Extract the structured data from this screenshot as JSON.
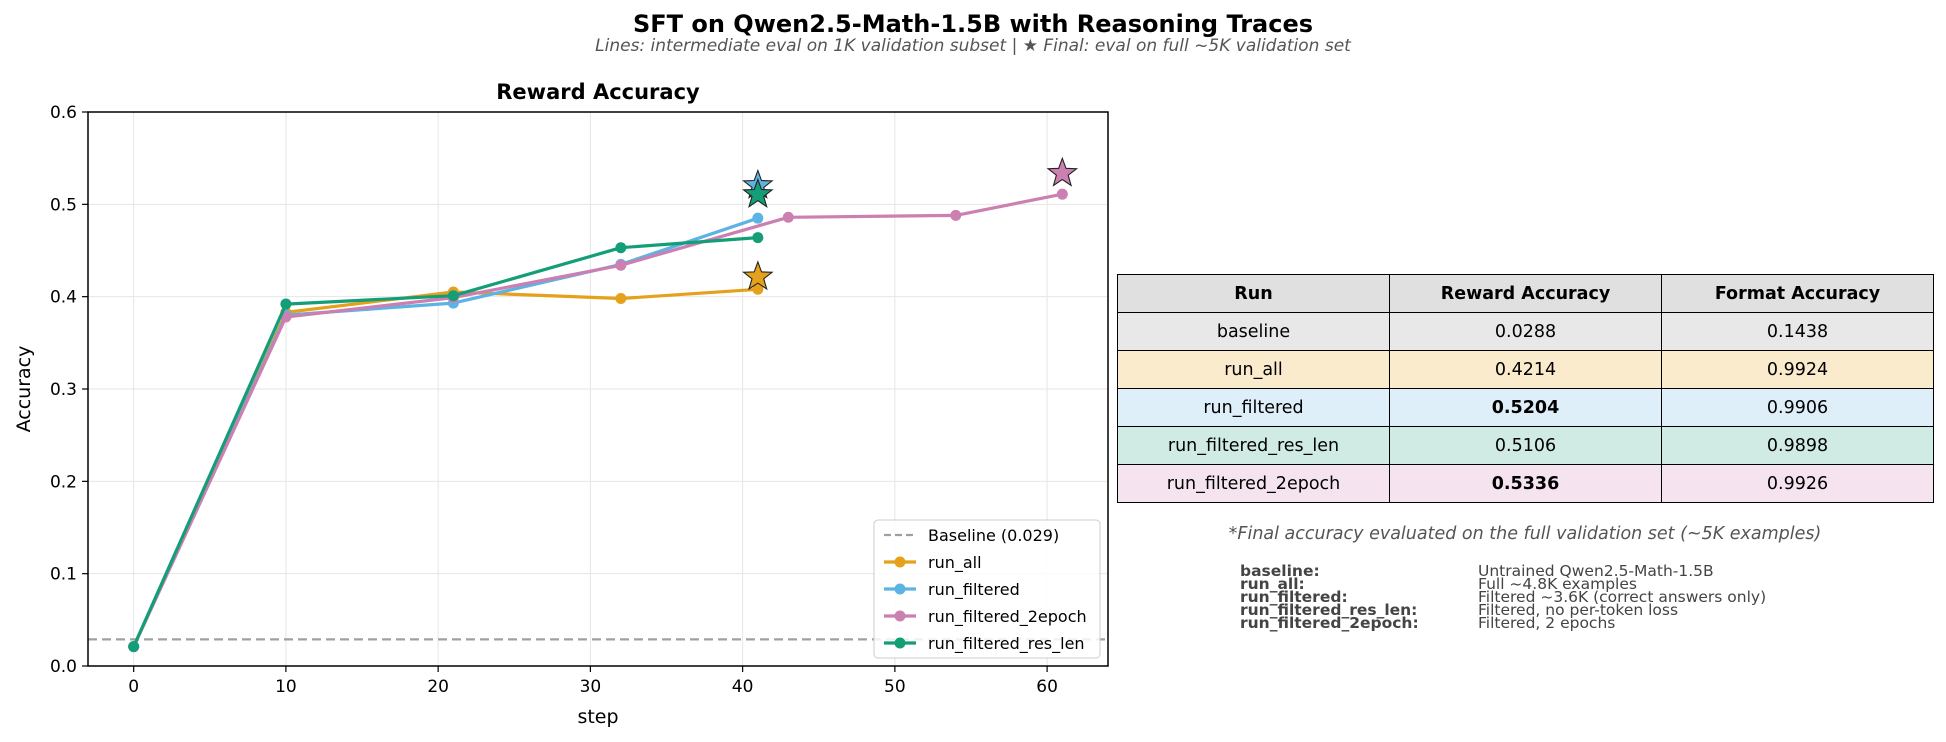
{
  "figure": {
    "title": "SFT on Qwen2.5-Math-1.5B with Reasoning Traces",
    "subtitle": "Lines: intermediate eval on 1K validation subset  |  ★ Final: eval on full ~5K validation set"
  },
  "chart_data": {
    "type": "line",
    "title": "Reward Accuracy",
    "xlabel": "step",
    "ylabel": "Accuracy",
    "xlim": [
      -3,
      64
    ],
    "ylim": [
      0,
      0.6
    ],
    "xticks": [
      0,
      10,
      20,
      30,
      40,
      50,
      60
    ],
    "yticks": [
      0.0,
      0.1,
      0.2,
      0.3,
      0.4,
      0.5,
      0.6
    ],
    "grid": true,
    "legend_position": "lower-right",
    "baseline": {
      "name": "Baseline (0.029)",
      "value": 0.0288,
      "color": "#a0a0a0"
    },
    "series": [
      {
        "name": "run_all",
        "color": "#e5a11b",
        "x": [
          0,
          10,
          21,
          32,
          41
        ],
        "y": [
          0.021,
          0.383,
          0.405,
          0.398,
          0.408
        ],
        "final": {
          "x": 41,
          "y": 0.4214
        }
      },
      {
        "name": "run_filtered",
        "color": "#5cb3e4",
        "x": [
          0,
          10,
          21,
          32,
          41
        ],
        "y": [
          0.021,
          0.38,
          0.393,
          0.435,
          0.485
        ],
        "final": {
          "x": 41,
          "y": 0.5204
        }
      },
      {
        "name": "run_filtered_2epoch",
        "color": "#cc7fb1",
        "x": [
          0,
          10,
          21,
          32,
          43,
          54,
          61
        ],
        "y": [
          0.021,
          0.378,
          0.399,
          0.434,
          0.486,
          0.488,
          0.511
        ],
        "final": {
          "x": 61,
          "y": 0.5336
        }
      },
      {
        "name": "run_filtered_res_len",
        "color": "#149e77",
        "x": [
          0,
          10,
          21,
          32,
          41
        ],
        "y": [
          0.021,
          0.392,
          0.401,
          0.453,
          0.464
        ],
        "final": {
          "x": 41,
          "y": 0.5106
        }
      }
    ]
  },
  "table": {
    "headers": [
      "Run",
      "Reward Accuracy",
      "Format Accuracy"
    ],
    "header_bg": "#e0e0e0",
    "rows": [
      {
        "run": "baseline",
        "reward": "0.0288",
        "format": "0.1438",
        "bg": "#e8e8e8",
        "bold_reward": false
      },
      {
        "run": "run_all",
        "reward": "0.4214",
        "format": "0.9924",
        "bg": "#faebcd",
        "bold_reward": false
      },
      {
        "run": "run_filtered",
        "reward": "0.5204",
        "format": "0.9906",
        "bg": "#dfeff9",
        "bold_reward": true
      },
      {
        "run": "run_filtered_res_len",
        "reward": "0.5106",
        "format": "0.9898",
        "bg": "#d0ebe3",
        "bold_reward": false
      },
      {
        "run": "run_filtered_2epoch",
        "reward": "0.5336",
        "format": "0.9926",
        "bg": "#f5e4ef",
        "bold_reward": true
      }
    ],
    "footnote": "*Final accuracy evaluated on the full validation set (~5K examples)"
  },
  "descriptions": [
    {
      "key": "baseline:",
      "value": "Untrained Qwen2.5-Math-1.5B"
    },
    {
      "key": "run_all:",
      "value": "Full ~4.8K examples"
    },
    {
      "key": "run_filtered:",
      "value": "Filtered ~3.6K (correct answers only)"
    },
    {
      "key": "run_filtered_res_len:",
      "value": "Filtered, no per-token loss"
    },
    {
      "key": "run_filtered_2epoch:",
      "value": "Filtered, 2 epochs"
    }
  ]
}
